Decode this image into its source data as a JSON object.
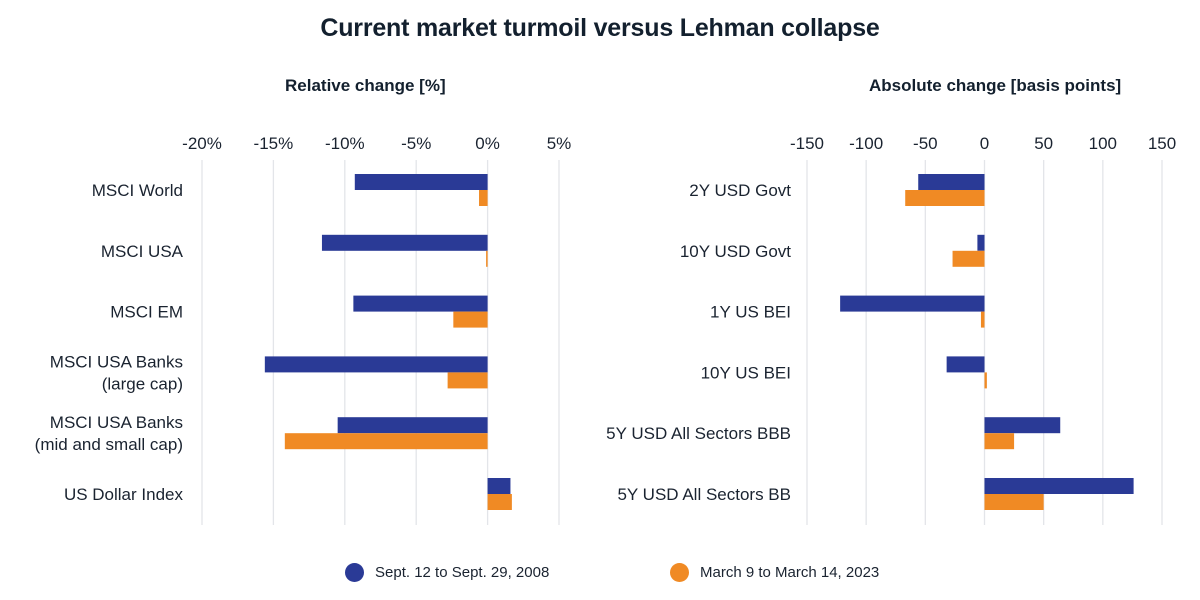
{
  "title": "Current market turmoil versus Lehman collapse",
  "colors": {
    "series_2008": "#2a3a96",
    "series_2023": "#f08a24",
    "grid": "#e3e5e9",
    "text": "#1a2330"
  },
  "legend": [
    {
      "label": "Sept. 12 to Sept. 29, 2008",
      "icon": "circle-marker-icon",
      "color": "#2a3a96"
    },
    {
      "label": "March 9 to March 14, 2023",
      "icon": "circle-marker-icon",
      "color": "#f08a24"
    }
  ],
  "chart_data": [
    {
      "type": "bar",
      "orientation": "horizontal",
      "title": "Relative change [%]",
      "xlabel": "Relative change [%]",
      "ylabel": "",
      "xlim": [
        -20,
        5
      ],
      "xticks": [
        -20,
        -15,
        -10,
        -5,
        0,
        5
      ],
      "xtick_labels": [
        "-20%",
        "-15%",
        "-10%",
        "-5%",
        "0%",
        "5%"
      ],
      "grid": "vertical",
      "legend_position": "bottom",
      "categories": [
        [
          "MSCI World"
        ],
        [
          "MSCI USA"
        ],
        [
          "MSCI EM"
        ],
        [
          "MSCI USA Banks",
          "(large cap)"
        ],
        [
          "MSCI USA Banks",
          "(mid and small cap)"
        ],
        [
          "US Dollar Index"
        ]
      ],
      "series": [
        {
          "name": "Sept. 12 to Sept. 29, 2008",
          "values": [
            -9.3,
            -11.6,
            -9.4,
            -15.6,
            -10.5,
            1.6
          ]
        },
        {
          "name": "March 9 to March 14, 2023",
          "values": [
            -0.6,
            -0.1,
            -2.4,
            -2.8,
            -14.2,
            1.7
          ]
        }
      ]
    },
    {
      "type": "bar",
      "orientation": "horizontal",
      "title": "Absolute change [basis points]",
      "xlabel": "Absolute change [basis points]",
      "ylabel": "",
      "xlim": [
        -150,
        150
      ],
      "xticks": [
        -150,
        -100,
        -50,
        0,
        50,
        100,
        150
      ],
      "xtick_labels": [
        "-150",
        "-100",
        "-50",
        "0",
        "50",
        "100",
        "150"
      ],
      "grid": "vertical",
      "legend_position": "bottom",
      "categories": [
        [
          "2Y USD Govt"
        ],
        [
          "10Y USD Govt"
        ],
        [
          "1Y US BEI"
        ],
        [
          "10Y US BEI"
        ],
        [
          "5Y USD All Sectors BBB"
        ],
        [
          "5Y USD All Sectors BB"
        ]
      ],
      "series": [
        {
          "name": "Sept. 12 to Sept. 29, 2008",
          "values": [
            -56,
            -6,
            -122,
            -32,
            64,
            126
          ]
        },
        {
          "name": "March 9 to March 14, 2023",
          "values": [
            -67,
            -27,
            -3,
            2,
            25,
            50
          ]
        }
      ]
    }
  ]
}
